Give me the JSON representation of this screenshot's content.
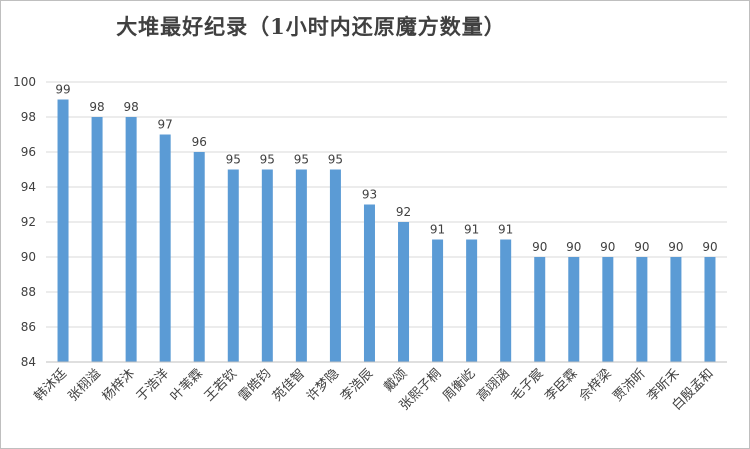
{
  "chart_data": {
    "type": "bar",
    "title": "大堆最好纪录（1小时内还原魔方数量）",
    "xlabel": "",
    "ylabel": "",
    "categories": [
      "韩沐廷",
      "张栩溢",
      "杨梓沐",
      "于浩洋",
      "叶苇霖",
      "王若钦",
      "雷皓钧",
      "苑佳智",
      "许梦隐",
      "李浩辰",
      "戴颂",
      "张熙子桐",
      "周衡屹",
      "高翊涵",
      "毛子宸",
      "李臣霖",
      "佘梓梁",
      "贾沛昕",
      "李昕禾",
      "白殷孟和"
    ],
    "values": [
      99,
      98,
      98,
      97,
      96,
      95,
      95,
      95,
      95,
      93,
      92,
      91,
      91,
      91,
      90,
      90,
      90,
      90,
      90,
      90
    ],
    "ylim": [
      84,
      100
    ],
    "yticks": [
      84,
      86,
      88,
      90,
      92,
      94,
      96,
      98,
      100
    ],
    "grid": true,
    "legend": "none",
    "bar_color": "#5b9bd5"
  }
}
